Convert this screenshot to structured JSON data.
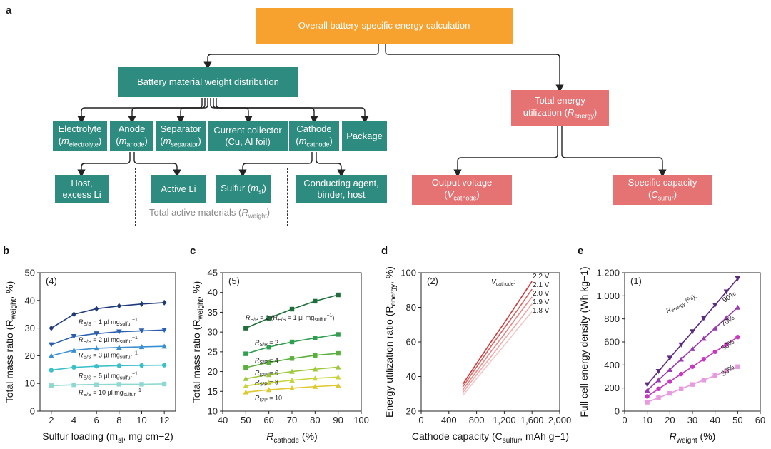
{
  "panel_a": {
    "letter": "a",
    "top": "Overall battery-specific energy calculation",
    "weight_dist": "Battery material weight distribution",
    "total_energy": {
      "line1": "Total energy",
      "line2": "utilization (",
      "var": "R",
      "sub": "energy",
      "end": ")"
    },
    "electrolyte": {
      "name": "Electrolyte",
      "var": "m",
      "sub": "electrolyte"
    },
    "anode": {
      "name": "Anode",
      "var": "m",
      "sub": "anode"
    },
    "separator": {
      "name": "Separator",
      "var": "m",
      "sub": "separator"
    },
    "collector": {
      "name": "Current collector",
      "detail": "(Cu, Al foil)"
    },
    "cathode": {
      "name": "Cathode",
      "var": "m",
      "sub": "cathode"
    },
    "package": "Package",
    "host": {
      "line1": "Host,",
      "line2": "excess Li"
    },
    "active_li": "Active Li",
    "sulfur": {
      "name": "Sulfur (",
      "var": "m",
      "sub": "sl",
      "end": ")"
    },
    "conducting": {
      "line1": "Conducting agent,",
      "line2": "binder, host"
    },
    "active_caption": {
      "text": "Total active materials (",
      "var": "R",
      "sub": "weight",
      "end": ")"
    },
    "voltage": {
      "line1": "Output voltage",
      "var": "V",
      "sub": "cathode"
    },
    "capacity": {
      "line1": "Specific capacity",
      "var": "C",
      "sub": "sulfur"
    }
  },
  "chart_data": [
    {
      "panel": "b",
      "type": "line",
      "tag": "(4)",
      "xlabel": "Sulfur loading (m",
      "xlabel_sub": "sl",
      "xlabel_end": ", mg cm−2)",
      "ylabel": "Total mass ratio (R",
      "ylabel_sub": "weight",
      "ylabel_end": ", %)",
      "xlim": [
        1,
        13
      ],
      "ylim": [
        0,
        50
      ],
      "xticks": [
        2,
        4,
        6,
        8,
        10,
        12
      ],
      "yticks": [
        0,
        10,
        20,
        30,
        40,
        50
      ],
      "x": [
        2,
        4,
        6,
        8,
        10,
        12
      ],
      "series": [
        {
          "name": "R E/S = 1 µl mg sulfur −1",
          "label_main": "R",
          "label_sub": "E/S",
          "label_rest": " = 1 µl mg",
          "label_sub2": "sulfur",
          "label_sup": "−1",
          "color": "#1f3a7a",
          "marker": "diamond",
          "values": [
            30,
            35,
            37,
            38,
            38.7,
            39.2
          ]
        },
        {
          "name": "R E/S = 2 µl mg sulfur −1",
          "label_main": "R",
          "label_sub": "E/S",
          "label_rest": " = 2 µl mg",
          "label_sub2": "sulfur",
          "label_sup": "−1",
          "color": "#2a5fb0",
          "marker": "triangle-down",
          "values": [
            24,
            27,
            28,
            28.7,
            29,
            29.3
          ]
        },
        {
          "name": "R E/S = 3 µl mg sulfur −1",
          "label_main": "R",
          "label_sub": "E/S",
          "label_rest": " = 3 µl mg",
          "label_sub2": "sulfur",
          "label_sup": "−1",
          "color": "#3a8fd0",
          "marker": "triangle",
          "values": [
            20,
            22,
            22.7,
            23,
            23.2,
            23.4
          ]
        },
        {
          "name": "R E/S = 5 µl mg sulfur −1",
          "label_main": "R",
          "label_sub": "E/S",
          "label_rest": " = 5 µl mg",
          "label_sub2": "sulfur",
          "label_sup": "−1",
          "color": "#3cc0c8",
          "marker": "circle",
          "values": [
            14.8,
            15.8,
            16.2,
            16.4,
            16.5,
            16.6
          ]
        },
        {
          "name": "R E/S = 10 µl mg sulfur −1",
          "label_main": "R",
          "label_sub": "E/S",
          "label_rest": " = 10 µl mg",
          "label_sub2": "sulfur",
          "label_sup": "−1",
          "color": "#8fd8d2",
          "marker": "square",
          "values": [
            9.2,
            9.5,
            9.6,
            9.7,
            9.7,
            9.8
          ]
        }
      ]
    },
    {
      "panel": "c",
      "type": "line",
      "tag": "(5)",
      "xlabel": "R",
      "xlabel_sub": "cathode",
      "xlabel_end": " (%)",
      "ylabel": "Total mass ratio (R",
      "ylabel_sub": "weight",
      "ylabel_end": ", %)",
      "xlim": [
        40,
        100
      ],
      "ylim": [
        10,
        45
      ],
      "xticks": [
        40,
        50,
        60,
        70,
        80,
        90,
        100
      ],
      "yticks": [
        10,
        15,
        20,
        25,
        30,
        35,
        40,
        45
      ],
      "x": [
        50,
        60,
        70,
        80,
        90
      ],
      "series": [
        {
          "name": "R S/P = 2 (R E/S = 1 µl mg sulfur −1)",
          "label_main": "R",
          "label_sub": "S/P",
          "label_rest": " = 2 (R",
          "label_sub2": "E/S",
          "label_rest2": " = 1 µl mg",
          "label_sub3": "sulfur",
          "label_sup": "−1",
          "label_end": ")",
          "color": "#1e6e3a",
          "marker": "square",
          "values": [
            31,
            33.5,
            35.8,
            37.8,
            39.4
          ]
        },
        {
          "name": "R S/P = 2",
          "label_main": "R",
          "label_sub": "S/P",
          "label_rest": " = 2",
          "color": "#2f9e4f",
          "marker": "square",
          "values": [
            24.5,
            26.2,
            27.5,
            28.5,
            29.4
          ]
        },
        {
          "name": "R S/P = 4",
          "label_main": "R",
          "label_sub": "S/P",
          "label_rest": " = 4",
          "color": "#5ab03c",
          "marker": "square",
          "values": [
            21,
            22.3,
            23.3,
            24.1,
            24.6
          ]
        },
        {
          "name": "R S/P = 6",
          "label_main": "R",
          "label_sub": "S/P",
          "label_rest": " = 6",
          "color": "#9cc83a",
          "marker": "triangle",
          "values": [
            18.2,
            19.2,
            20,
            20.6,
            21.1
          ]
        },
        {
          "name": "R S/P = 8",
          "label_main": "R",
          "label_sub": "S/P",
          "label_rest": " = 8",
          "color": "#c9d43a",
          "marker": "triangle",
          "values": [
            16.4,
            17.2,
            17.8,
            18.3,
            18.6
          ]
        },
        {
          "name": "R S/P = 10",
          "label_main": "R",
          "label_sub": "S/P",
          "label_rest": " = 10",
          "color": "#e0c830",
          "marker": "triangle",
          "values": [
            14.8,
            15.4,
            15.8,
            16.2,
            16.5
          ]
        }
      ]
    },
    {
      "panel": "d",
      "type": "line",
      "tag": "(2)",
      "xlabel": "Cathode capacity (C",
      "xlabel_sub": "sulfur",
      "xlabel_end": ", mAh g−1)",
      "ylabel": "Energy utilization ratio (R",
      "ylabel_sub": "energy",
      "ylabel_end": ", %)",
      "xlim": [
        0,
        2000
      ],
      "ylim": [
        20,
        100
      ],
      "xticks": [
        0,
        400,
        800,
        1200,
        1600,
        2000
      ],
      "xticklabels": [
        "0",
        "400",
        "800",
        "1,200",
        "1,600",
        "2,000"
      ],
      "yticks": [
        20,
        40,
        60,
        80,
        100
      ],
      "x": [
        600,
        800,
        1000,
        1200,
        1400,
        1600
      ],
      "legend_title": "V",
      "legend_title_sub": "cathode",
      "legend_title_end": ":",
      "series": [
        {
          "name": "2.2 V",
          "color": "#c83a3a",
          "values": [
            35.5,
            47.5,
            59.5,
            71,
            83,
            95
          ]
        },
        {
          "name": "2.1 V",
          "color": "#d86060",
          "values": [
            34,
            45.5,
            57,
            68,
            79,
            90.5
          ]
        },
        {
          "name": "2.0 V",
          "color": "#e48a8a",
          "values": [
            32.3,
            43,
            54,
            64.5,
            75.5,
            86
          ]
        },
        {
          "name": "1.9 V",
          "color": "#eeaaaa",
          "values": [
            30.7,
            41,
            51,
            61.5,
            71.5,
            82
          ]
        },
        {
          "name": "1.8 V",
          "color": "#f4c6c6",
          "values": [
            29,
            38.8,
            48.5,
            58,
            68,
            77.5
          ]
        }
      ]
    },
    {
      "panel": "e",
      "type": "line",
      "tag": "(1)",
      "xlabel": "R",
      "xlabel_sub": "weight",
      "xlabel_end": " (%)",
      "ylabel": "Full cell energy density (Wh kg−1)",
      "xlim": [
        0,
        60
      ],
      "ylim": [
        0,
        1200
      ],
      "xticks": [
        0,
        10,
        20,
        30,
        40,
        50,
        60
      ],
      "yticks": [
        0,
        200,
        400,
        600,
        800,
        1000,
        1200
      ],
      "yticklabels": [
        "0",
        "200",
        "400",
        "600",
        "800",
        "1,000",
        "1,200"
      ],
      "x": [
        10,
        15,
        20,
        25,
        30,
        35,
        40,
        45,
        50
      ],
      "annotation": {
        "main": "R",
        "sub": "energy",
        "end": " (%):"
      },
      "series": [
        {
          "name": "90%",
          "color": "#5c2a80",
          "marker": "triangle-down",
          "values": [
            230,
            345,
            460,
            575,
            690,
            805,
            920,
            1035,
            1150
          ]
        },
        {
          "name": "70%",
          "color": "#9a3ab0",
          "marker": "triangle",
          "values": [
            180,
            270,
            360,
            450,
            540,
            630,
            720,
            810,
            900
          ]
        },
        {
          "name": "50%",
          "color": "#c838c0",
          "marker": "circle",
          "values": [
            128,
            193,
            257,
            321,
            385,
            450,
            514,
            578,
            642
          ]
        },
        {
          "name": "30%",
          "color": "#e89ae0",
          "marker": "square",
          "values": [
            77,
            116,
            154,
            193,
            231,
            270,
            308,
            347,
            385
          ]
        }
      ]
    }
  ]
}
